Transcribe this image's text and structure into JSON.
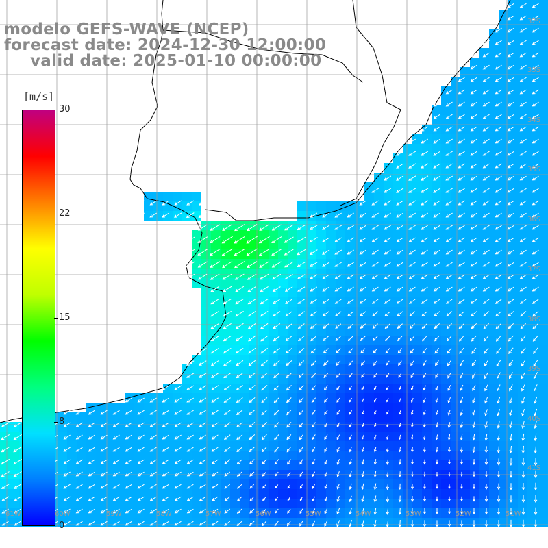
{
  "title": {
    "line1": "modelo GEFS-WAVE (NCEP)",
    "line2": "forecast date: 2024-12-30 12:00:00",
    "line3": "valid date: 2025-01-10 00:00:00"
  },
  "colorbar": {
    "unit": "[m/s]",
    "min": 0,
    "max": 30,
    "ticks": [
      "30",
      "22",
      "15",
      "8",
      "0"
    ],
    "tick_values": [
      30,
      22,
      15,
      8,
      0
    ],
    "colors": [
      "#0000ff",
      "#0080ff",
      "#00e0ff",
      "#00ff80",
      "#00ff00",
      "#c0ff00",
      "#ffff00",
      "#ff8000",
      "#ff0000",
      "#c00080"
    ]
  },
  "grid": {
    "lat_labels": [
      "32S",
      "33S",
      "34S",
      "35S",
      "36S",
      "37S",
      "38S",
      "39S",
      "40S",
      "41S"
    ],
    "lon_labels": [
      "61W",
      "60W",
      "59W",
      "58W",
      "57W",
      "56W",
      "55W",
      "54W",
      "53W",
      "52W",
      "51W"
    ]
  },
  "map": {
    "variable": "wind speed",
    "land_color": "#ffffff",
    "coast_color": "#000000",
    "grid_color": "#999999",
    "arrow_color": "#ffffff"
  }
}
